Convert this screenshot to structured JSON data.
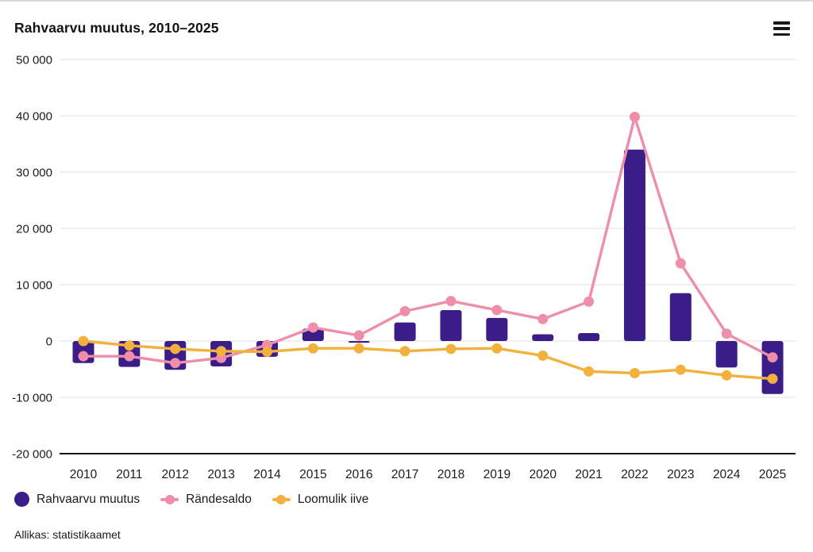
{
  "header": {
    "title": "Rahvaarvu muutus, 2010–2025",
    "menu_icon": "hamburger-menu-icon"
  },
  "colors": {
    "background": "#ffffff",
    "grid": "#e8e8e8",
    "axis": "#161616",
    "text": "#1c1c1c",
    "bar_purple": "#3a1d88",
    "line_pink": "#ef8ea8",
    "line_orange": "#f2b13c"
  },
  "chart_data": {
    "type": "bar",
    "title": "Rahvaarvu muutus, 2010–2025",
    "categories": [
      "2010",
      "2011",
      "2012",
      "2013",
      "2014",
      "2015",
      "2016",
      "2017",
      "2018",
      "2019",
      "2020",
      "2021",
      "2022",
      "2023",
      "2024",
      "2025"
    ],
    "series": [
      {
        "name": "Rahvaarvu muutus",
        "type": "bar",
        "color": "#3a1d88",
        "values": [
          -3900,
          -4600,
          -5100,
          -4500,
          -2800,
          2200,
          -300,
          3300,
          5500,
          4100,
          1200,
          1400,
          34000,
          8500,
          -4700,
          -9400
        ]
      },
      {
        "name": "Rändesaldo",
        "type": "line",
        "color": "#ef8ea8",
        "values": [
          -2700,
          -2700,
          -3900,
          -3000,
          -700,
          2400,
          1000,
          5300,
          7100,
          5500,
          3900,
          7000,
          39800,
          13800,
          1300,
          -2900
        ]
      },
      {
        "name": "Loomulik iive",
        "type": "line",
        "color": "#f2b13c",
        "values": [
          0,
          -800,
          -1400,
          -1800,
          -1900,
          -1300,
          -1300,
          -1800,
          -1400,
          -1300,
          -2600,
          -5400,
          -5700,
          -5100,
          -6100,
          -6700
        ]
      }
    ],
    "ylim": [
      -20000,
      50000
    ],
    "yticks": [
      {
        "value": 50000,
        "label": "50 000"
      },
      {
        "value": 40000,
        "label": "40 000"
      },
      {
        "value": 30000,
        "label": "30 000"
      },
      {
        "value": 20000,
        "label": "20 000"
      },
      {
        "value": 10000,
        "label": "10 000"
      },
      {
        "value": 0,
        "label": "0"
      },
      {
        "value": -10000,
        "label": "-10 000"
      },
      {
        "value": -20000,
        "label": "-20 000"
      }
    ],
    "grid": true,
    "legend_position": "bottom",
    "xlabel": "",
    "ylabel": ""
  },
  "footer": {
    "source": "Allikas: statistikaamet"
  }
}
